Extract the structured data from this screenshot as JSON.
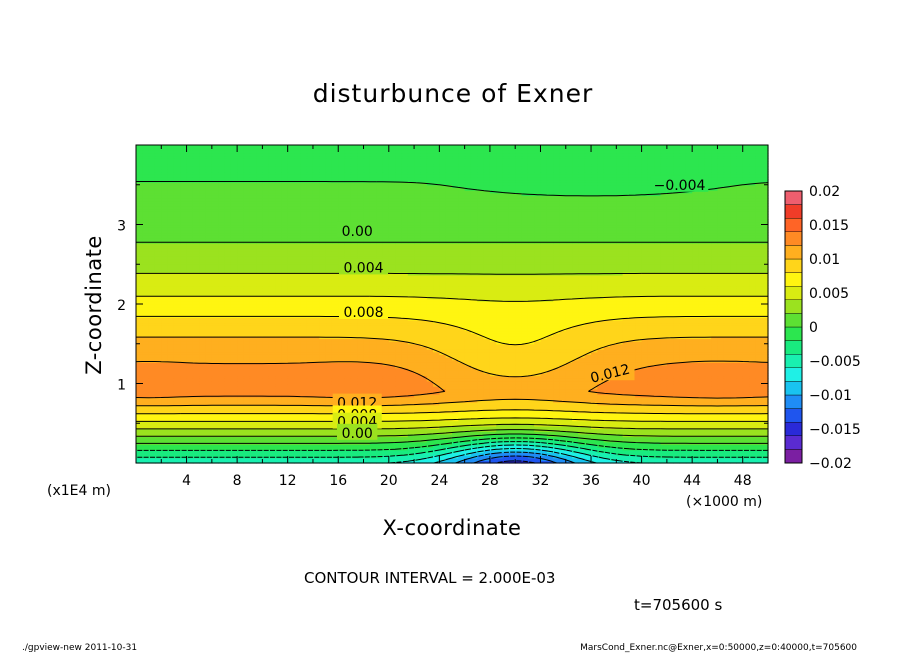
{
  "chart_data": {
    "type": "heatmap",
    "title": "disturbunce of Exner",
    "xlabel": "X-coordinate",
    "ylabel": "Z-coordinate",
    "x_unit": "(×1000 m)",
    "y_unit": "(x1E4 m)",
    "xlim": [
      0,
      50
    ],
    "ylim": [
      0,
      4
    ],
    "x_ticks": [
      4,
      8,
      12,
      16,
      20,
      24,
      28,
      32,
      36,
      40,
      44,
      48
    ],
    "x_tick_labels": [
      "4",
      "8",
      "12",
      "16",
      "20",
      "24",
      "28",
      "32",
      "36",
      "40",
      "44",
      "48"
    ],
    "y_ticks": [
      1,
      2,
      3
    ],
    "y_tick_labels": [
      "1",
      "2",
      "3"
    ],
    "colorbar": {
      "min": -0.02,
      "max": 0.02,
      "ticks": [
        0.02,
        0.015,
        0.01,
        0.005,
        0,
        -0.005,
        -0.01,
        -0.015,
        -0.02
      ],
      "tick_labels": [
        "0.02",
        "0.015",
        "0.01",
        "0.005",
        "0",
        "−0.005",
        "−0.01",
        "−0.015",
        "−0.02"
      ]
    },
    "contour_interval": 0.002,
    "contour_labels": [
      {
        "text": "−0.004",
        "x": 43,
        "z": 3.5
      },
      {
        "text": "0.00",
        "x": 17.5,
        "z": 2.92
      },
      {
        "text": "0.004",
        "x": 18,
        "z": 2.46
      },
      {
        "text": "0.008",
        "x": 18,
        "z": 1.9
      },
      {
        "text": "0.012",
        "x": 37.5,
        "z": 1.13
      },
      {
        "text": "0.012",
        "x": 17.5,
        "z": 0.76
      },
      {
        "text": "0.008",
        "x": 17.5,
        "z": 0.61
      },
      {
        "text": "0.004",
        "x": 17.5,
        "z": 0.52
      },
      {
        "text": "0.00",
        "x": 17.5,
        "z": 0.38
      }
    ]
  },
  "annotations": {
    "contour_interval_text": "CONTOUR INTERVAL = 2.000E-03",
    "time_text": "t=705600 s"
  },
  "footer": {
    "left": "./gpview-new  2011-10-31",
    "right": "MarsCond_Exner.nc@Exner,x=0:50000,z=0:40000,t=705600"
  }
}
